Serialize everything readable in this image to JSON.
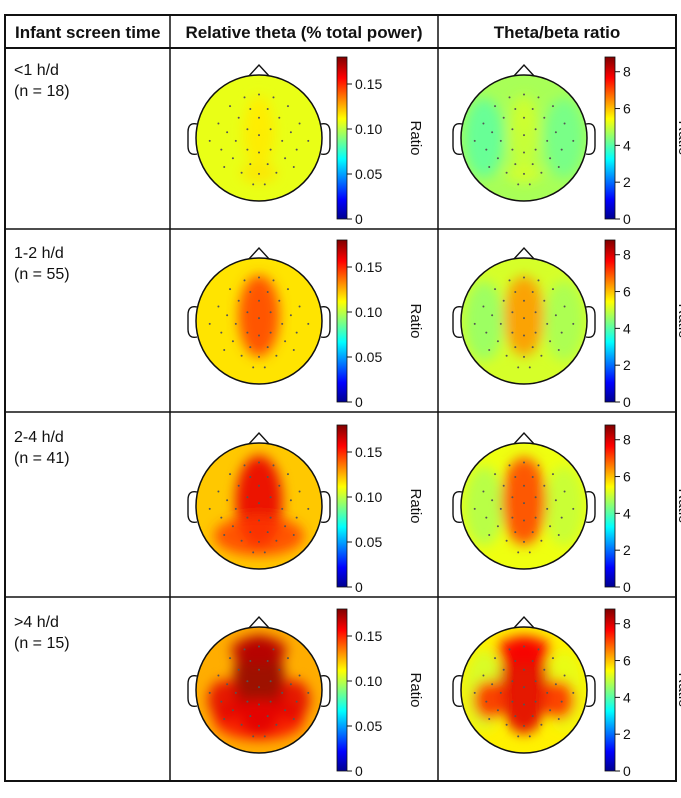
{
  "table": {
    "headers": {
      "col1": "Infant screen time",
      "col2": "Relative theta (% total power)",
      "col3": "Theta/beta ratio"
    },
    "rows": [
      {
        "label_line1": "<1 h/d",
        "label_line2": "(n = 18)",
        "theta_intensity": 0.15,
        "ratio_intensity": 0.12
      },
      {
        "label_line1": "1-2 h/d",
        "label_line2": "(n = 55)",
        "theta_intensity": 0.55,
        "ratio_intensity": 0.5
      },
      {
        "label_line1": "2-4 h/d",
        "label_line2": "(n = 41)",
        "theta_intensity": 0.78,
        "ratio_intensity": 0.7
      },
      {
        "label_line1": ">4 h/d",
        "label_line2": "(n = 15)",
        "theta_intensity": 1.0,
        "ratio_intensity": 0.95
      }
    ]
  },
  "colorbars": {
    "theta": {
      "title": "Ratio",
      "ticks": [
        "0",
        "0.05",
        "0.10",
        "0.15"
      ],
      "tick_values": [
        0,
        0.05,
        0.1,
        0.15
      ],
      "max": 0.18
    },
    "ratio": {
      "title": "Ratio",
      "ticks": [
        "0",
        "2",
        "4",
        "6",
        "8"
      ],
      "tick_values": [
        0,
        2,
        4,
        6,
        8
      ],
      "max": 8.8
    }
  },
  "colors": {
    "grid": "#111111",
    "cmap": [
      "#00008f",
      "#0000ff",
      "#00ffff",
      "#ffff00",
      "#ff0000",
      "#800000"
    ]
  }
}
